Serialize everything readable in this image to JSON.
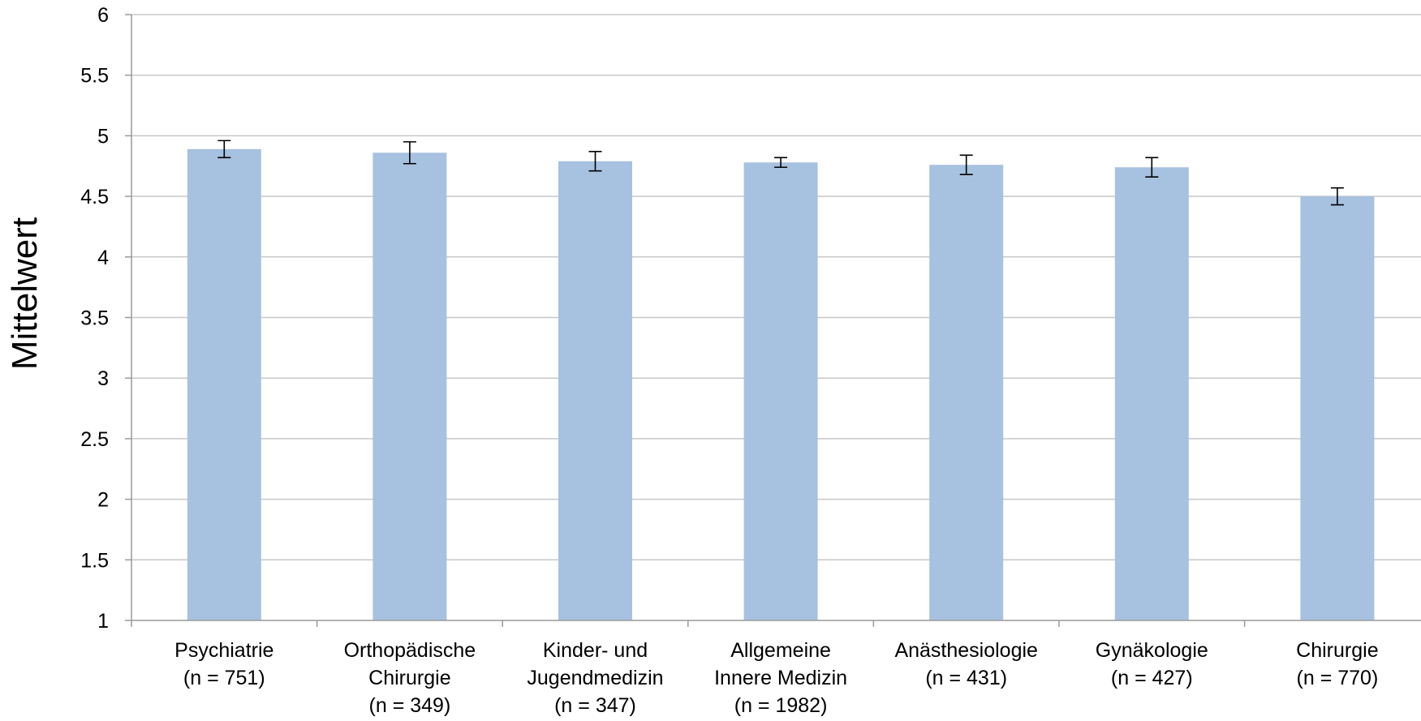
{
  "chart_data": {
    "type": "bar",
    "title": "",
    "xlabel": "",
    "ylabel": "Mittelwert",
    "ylim": [
      1,
      6
    ],
    "yticks": [
      "1",
      "1.5",
      "2",
      "2.5",
      "3",
      "3.5",
      "4",
      "4.5",
      "5",
      "5.5",
      "6"
    ],
    "grid": true,
    "legend": "none",
    "categories": [
      [
        "Psychiatrie",
        "(n = 751)"
      ],
      [
        "Orthopädische",
        "Chirurgie",
        "(n = 349)"
      ],
      [
        "Kinder- und",
        "Jugendmedizin",
        "(n = 347)"
      ],
      [
        "Allgemeine",
        "Innere Medizin",
        "(n = 1982)"
      ],
      [
        "Anästhesiologie",
        "(n = 431)"
      ],
      [
        "Gynäkologie",
        "(n = 427)"
      ],
      [
        "Chirurgie",
        "(n = 770)"
      ]
    ],
    "values": [
      4.89,
      4.86,
      4.79,
      4.78,
      4.76,
      4.74,
      4.5
    ],
    "errors": [
      0.07,
      0.09,
      0.08,
      0.04,
      0.08,
      0.08,
      0.07
    ],
    "colors": {
      "bar": "#a7c1e0",
      "grid": "#c8c8c8",
      "axis": "#9a9a9a",
      "error": "#000000"
    }
  }
}
